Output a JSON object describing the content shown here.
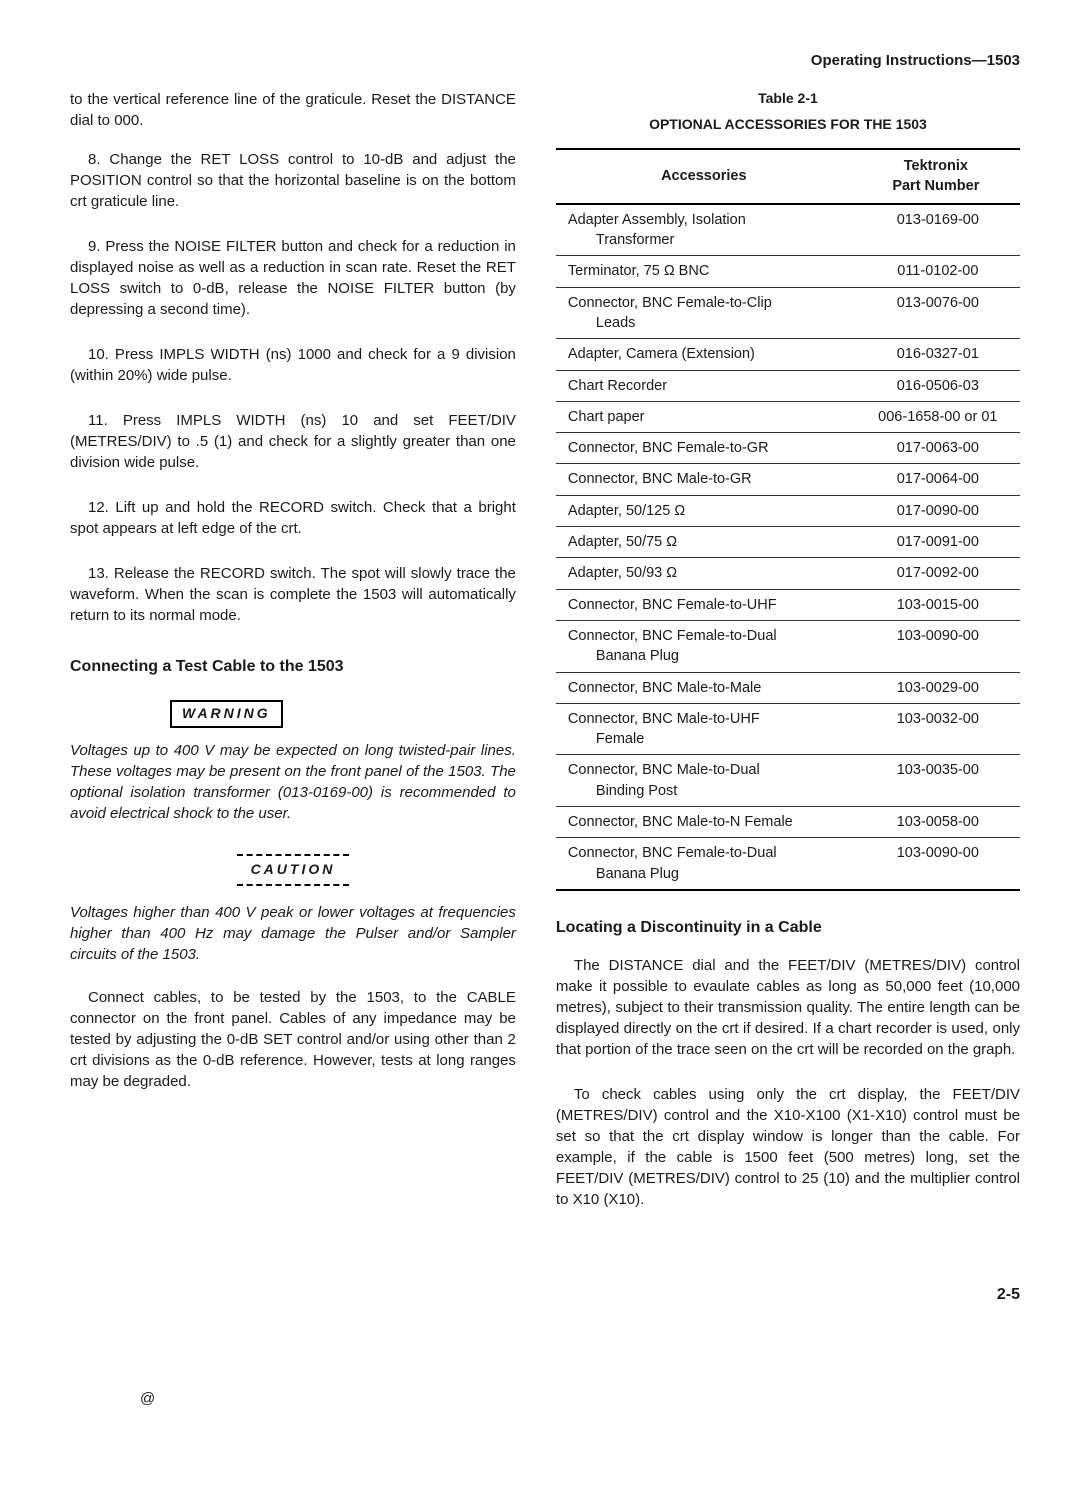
{
  "header": "Operating Instructions—1503",
  "left": {
    "intro": "to the vertical reference line of the graticule. Reset the DISTANCE dial to 000.",
    "steps": [
      "8. Change the RET LOSS control to 10-dB and adjust the POSITION control so that the horizontal baseline is on the bottom crt graticule line.",
      "9. Press the NOISE FILTER button and check for a reduction in displayed noise as well as a reduction in scan rate. Reset the RET LOSS switch to 0-dB, release the NOISE FILTER button (by depressing a second time).",
      "10. Press IMPLS WIDTH (ns) 1000 and check for a 9 division (within 20%) wide pulse.",
      "11. Press IMPLS WIDTH (ns) 10 and set FEET/DIV (METRES/DIV) to .5 (1) and check for a slightly greater than one division wide pulse.",
      "12. Lift up and hold the RECORD switch. Check that a bright spot appears at left edge of the crt.",
      "13. Release the RECORD switch. The spot will slowly trace the waveform. When the scan is complete the 1503 will automatically return to its normal mode."
    ],
    "connect_head": "Connecting a Test Cable to the 1503",
    "warning_label": "WARNING",
    "warning_text": "Voltages up to 400 V may be expected on long twisted-pair lines. These voltages may be present on the front panel of the 1503. The optional isolation transformer (013-0169-00) is recommended to avoid electrical shock to the user.",
    "caution_label": "CAUTION",
    "caution_text": "Voltages higher than 400 V peak or lower voltages at frequencies higher than 400 Hz may damage the Pulser and/or Sampler circuits of the 1503.",
    "connect_para": "Connect cables, to be tested by the 1503, to the CABLE connector on the front panel. Cables of any impedance may be tested by adjusting the 0-dB SET control and/or using other than 2 crt divisions as the 0-dB reference. However, tests at long ranges may be degraded."
  },
  "table": {
    "title": "Table 2-1",
    "subtitle": "OPTIONAL ACCESSORIES FOR THE 1503",
    "col1": "Accessories",
    "col2_a": "Tektronix",
    "col2_b": "Part Number",
    "rows": [
      {
        "a": "Adapter Assembly, Isolation",
        "sub": "Transformer",
        "p": "013-0169-00"
      },
      {
        "a": "Terminator, 75 Ω BNC",
        "p": "011-0102-00"
      },
      {
        "a": "Connector, BNC Female-to-Clip",
        "sub": "Leads",
        "p": "013-0076-00"
      },
      {
        "a": "Adapter, Camera (Extension)",
        "p": "016-0327-01"
      },
      {
        "a": "Chart Recorder",
        "p": "016-0506-03"
      },
      {
        "a": "Chart paper",
        "p": "006-1658-00 or 01"
      },
      {
        "a": "Connector, BNC Female-to-GR",
        "p": "017-0063-00"
      },
      {
        "a": "Connector, BNC Male-to-GR",
        "p": "017-0064-00"
      },
      {
        "a": "Adapter, 50/125 Ω",
        "p": "017-0090-00"
      },
      {
        "a": "Adapter, 50/75 Ω",
        "p": "017-0091-00"
      },
      {
        "a": "Adapter, 50/93 Ω",
        "p": "017-0092-00"
      },
      {
        "a": "Connector, BNC Female-to-UHF",
        "p": "103-0015-00"
      },
      {
        "a": "Connector, BNC Female-to-Dual",
        "sub": "Banana Plug",
        "p": "103-0090-00"
      },
      {
        "a": "Connector, BNC Male-to-Male",
        "p": "103-0029-00"
      },
      {
        "a": "Connector, BNC Male-to-UHF",
        "sub": "Female",
        "p": "103-0032-00"
      },
      {
        "a": "Connector, BNC Male-to-Dual",
        "sub": "Binding Post",
        "p": "103-0035-00"
      },
      {
        "a": "Connector, BNC Male-to-N Female",
        "p": "103-0058-00"
      },
      {
        "a": "Connector, BNC Female-to-Dual",
        "sub": "Banana Plug",
        "p": "103-0090-00"
      }
    ]
  },
  "right": {
    "locating_head": "Locating a Discontinuity in a Cable",
    "loc_p1": "The DISTANCE dial and the FEET/DIV (METRES/DIV) control make it possible to evaulate cables as long as 50,000 feet (10,000 metres), subject to their transmission quality. The entire length can be displayed directly on the crt if desired. If a chart recorder is used, only that portion of the trace seen on the crt will be recorded on the graph.",
    "loc_p2": "To check cables using only the crt display, the FEET/DIV (METRES/DIV) control and the X10-X100 (X1-X10) control must be set so that the crt display window is longer than the cable. For example, if the cable is 1500 feet (500 metres) long, set the FEET/DIV (METRES/DIV) control to 25 (10) and the multiplier control to X10 (X10)."
  },
  "footer": {
    "at": "@",
    "page": "2-5"
  }
}
